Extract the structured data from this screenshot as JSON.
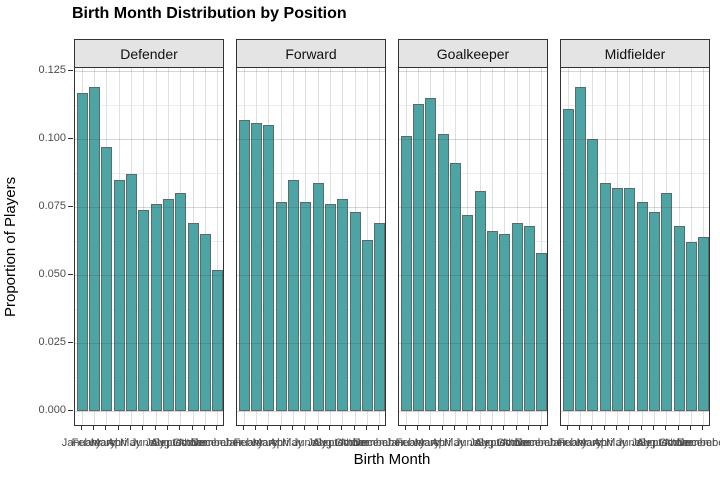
{
  "page_title": "Birth Month Distribution by Position",
  "chart_data": {
    "type": "bar",
    "title": "Birth Month Distribution by Position",
    "xlabel": "Birth Month",
    "ylabel": "Proportion of Players",
    "facets": [
      "Defender",
      "Forward",
      "Goalkeeper",
      "Midfielder"
    ],
    "categories": [
      "January",
      "February",
      "March",
      "April",
      "May",
      "June",
      "July",
      "August",
      "September",
      "October",
      "November",
      "December"
    ],
    "series": [
      {
        "name": "Defender",
        "values": [
          0.117,
          0.119,
          0.097,
          0.085,
          0.087,
          0.074,
          0.076,
          0.078,
          0.08,
          0.069,
          0.065,
          0.052
        ]
      },
      {
        "name": "Forward",
        "values": [
          0.107,
          0.106,
          0.105,
          0.077,
          0.085,
          0.077,
          0.084,
          0.076,
          0.078,
          0.073,
          0.063,
          0.069
        ]
      },
      {
        "name": "Goalkeeper",
        "values": [
          0.101,
          0.113,
          0.115,
          0.102,
          0.091,
          0.072,
          0.081,
          0.066,
          0.065,
          0.069,
          0.068,
          0.058
        ]
      },
      {
        "name": "Midfielder",
        "values": [
          0.111,
          0.119,
          0.1,
          0.084,
          0.082,
          0.082,
          0.077,
          0.073,
          0.08,
          0.068,
          0.062,
          0.064
        ]
      }
    ],
    "ylim": [
      0,
      0.125
    ],
    "yticks": [
      0,
      0.025,
      0.05,
      0.075,
      0.1,
      0.125
    ],
    "ytick_labels": [
      "0.000",
      "0.025",
      "0.050",
      "0.075",
      "0.100",
      "0.125"
    ],
    "grid": true,
    "legend": "none",
    "colors": {
      "bar_fill": "#4DA4A4",
      "bar_stroke": "#5A6B6B",
      "grid_major": "#DFDFDF",
      "grid_minor": "#EDEDED",
      "grid_overlay": "rgba(68,68,68,0.22)",
      "panel_border": "#333333",
      "strip_bg": "#E4E4E4",
      "tick_color": "#333333",
      "axis_text": "#4D4D4D"
    }
  }
}
